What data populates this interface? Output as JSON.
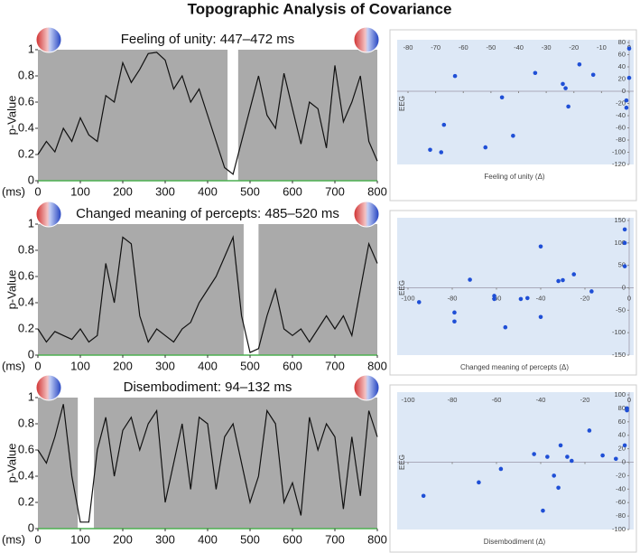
{
  "title": "Topographic Analysis of Covariance",
  "chart_data": [
    {
      "type": "line",
      "title": "Feeling of unity: 447–472 ms",
      "xlabel": "(ms)",
      "ylabel": "p-Value",
      "x": [
        0,
        20,
        40,
        60,
        80,
        100,
        120,
        140,
        160,
        180,
        200,
        220,
        240,
        260,
        280,
        300,
        320,
        340,
        360,
        380,
        400,
        420,
        440,
        460,
        480,
        500,
        520,
        540,
        560,
        580,
        600,
        620,
        640,
        660,
        680,
        700,
        720,
        740,
        760,
        780,
        800
      ],
      "series": [
        {
          "color": "#111111",
          "values": [
            0.2,
            0.3,
            0.22,
            0.4,
            0.3,
            0.48,
            0.35,
            0.3,
            0.65,
            0.6,
            0.9,
            0.75,
            0.85,
            0.97,
            0.98,
            0.92,
            0.7,
            0.8,
            0.6,
            0.7,
            0.5,
            0.3,
            0.1,
            0.05,
            0.3,
            0.55,
            0.8,
            0.5,
            0.4,
            0.82,
            0.55,
            0.28,
            0.6,
            0.55,
            0.25,
            0.88,
            0.45,
            0.6,
            0.8,
            0.3,
            0.15
          ]
        }
      ],
      "window": [
        447,
        472
      ],
      "background": "#aaaaaa",
      "axis_color": "#4caf50",
      "xlim": [
        0,
        800
      ],
      "xticks": [
        0,
        100,
        200,
        300,
        400,
        500,
        600,
        700,
        800
      ],
      "ylim": [
        0,
        1
      ],
      "yticks": [
        0,
        0.2,
        0.4,
        0.6,
        0.8,
        1
      ]
    },
    {
      "type": "line",
      "title": "Changed meaning of percepts: 485–520 ms",
      "xlabel": "(ms)",
      "ylabel": "p-Value",
      "x": [
        0,
        20,
        40,
        60,
        80,
        100,
        120,
        140,
        160,
        180,
        200,
        220,
        240,
        260,
        280,
        300,
        320,
        340,
        360,
        380,
        400,
        420,
        440,
        460,
        480,
        500,
        520,
        540,
        560,
        580,
        600,
        620,
        640,
        660,
        680,
        700,
        720,
        740,
        760,
        780,
        800
      ],
      "series": [
        {
          "color": "#111111",
          "values": [
            0.2,
            0.1,
            0.18,
            0.15,
            0.12,
            0.2,
            0.1,
            0.15,
            0.7,
            0.4,
            0.9,
            0.85,
            0.3,
            0.1,
            0.2,
            0.15,
            0.1,
            0.2,
            0.25,
            0.4,
            0.5,
            0.6,
            0.75,
            0.9,
            0.3,
            0.02,
            0.05,
            0.3,
            0.5,
            0.2,
            0.15,
            0.2,
            0.1,
            0.2,
            0.3,
            0.2,
            0.3,
            0.15,
            0.5,
            0.85,
            0.7
          ]
        }
      ],
      "window": [
        485,
        520
      ],
      "background": "#aaaaaa",
      "axis_color": "#4caf50",
      "xlim": [
        0,
        800
      ],
      "xticks": [
        0,
        100,
        200,
        300,
        400,
        500,
        600,
        700,
        800
      ],
      "ylim": [
        0,
        1
      ],
      "yticks": [
        0,
        0.2,
        0.4,
        0.6,
        0.8,
        1
      ]
    },
    {
      "type": "line",
      "title": "Disembodiment: 94–132 ms",
      "xlabel": "(ms)",
      "ylabel": "p-Value",
      "x": [
        0,
        20,
        40,
        60,
        80,
        100,
        120,
        140,
        160,
        180,
        200,
        220,
        240,
        260,
        280,
        300,
        320,
        340,
        360,
        380,
        400,
        420,
        440,
        460,
        480,
        500,
        520,
        540,
        560,
        580,
        600,
        620,
        640,
        660,
        680,
        700,
        720,
        740,
        760,
        780,
        800
      ],
      "series": [
        {
          "color": "#111111",
          "values": [
            0.6,
            0.5,
            0.7,
            0.95,
            0.4,
            0.05,
            0.05,
            0.6,
            0.85,
            0.4,
            0.75,
            0.85,
            0.6,
            0.8,
            0.9,
            0.2,
            0.5,
            0.8,
            0.3,
            0.85,
            0.8,
            0.3,
            0.7,
            0.8,
            0.5,
            0.2,
            0.4,
            0.9,
            0.8,
            0.2,
            0.35,
            0.1,
            0.85,
            0.6,
            0.8,
            0.7,
            0.15,
            0.7,
            0.25,
            0.9,
            0.7
          ]
        }
      ],
      "window": [
        94,
        132
      ],
      "background": "#aaaaaa",
      "axis_color": "#4caf50",
      "xlim": [
        0,
        800
      ],
      "xticks": [
        0,
        100,
        200,
        300,
        400,
        500,
        600,
        700,
        800
      ],
      "ylim": [
        0,
        1
      ],
      "yticks": [
        0,
        0.2,
        0.4,
        0.6,
        0.8,
        1
      ]
    },
    {
      "type": "scatter",
      "xlabel": "Feeling of unity (Δ)",
      "ylabel": "EEG",
      "background": "#dde8f6",
      "x": [
        -72,
        -68,
        -67,
        -63,
        -52,
        -46,
        -42,
        -34,
        -24,
        -23,
        -22,
        -18,
        -13,
        -1,
        -1,
        0,
        0
      ],
      "series": [
        {
          "color": "#1f4fd6",
          "values": [
            -96,
            -100,
            -55,
            25,
            -92,
            -10,
            -73,
            30,
            12,
            5,
            -25,
            44,
            27,
            -15,
            -27,
            70,
            22
          ]
        }
      ],
      "xlim": [
        -80,
        0
      ],
      "xticks": [
        -80,
        -70,
        -60,
        -50,
        -40,
        -30,
        -20,
        -10,
        0
      ],
      "ylim": [
        -120,
        80
      ],
      "yticks": [
        -120,
        -100,
        -80,
        -60,
        -40,
        -20,
        0,
        20,
        40,
        60,
        80
      ]
    },
    {
      "type": "scatter",
      "xlabel": "Changed meaning of percepts (Δ)",
      "ylabel": "EEG",
      "background": "#dde8f6",
      "x": [
        -95,
        -79,
        -79,
        -72,
        -61,
        -61,
        -56,
        -49,
        -46,
        -40,
        -40,
        -32,
        -30,
        -25,
        -17,
        -2,
        -2,
        -2
      ],
      "series": [
        {
          "color": "#1f4fd6",
          "values": [
            -32,
            -55,
            -75,
            18,
            -18,
            -25,
            -88,
            -25,
            -23,
            92,
            -65,
            15,
            17,
            30,
            -8,
            130,
            100,
            48
          ]
        }
      ],
      "xlim": [
        -100,
        0
      ],
      "xticks": [
        -100,
        -80,
        -60,
        -40,
        -20,
        0
      ],
      "ylim": [
        -150,
        150
      ],
      "yticks": [
        -150,
        -100,
        -50,
        0,
        50,
        100,
        150
      ]
    },
    {
      "type": "scatter",
      "xlabel": "Disembodiment (Δ)",
      "ylabel": "EEG",
      "background": "#dde8f6",
      "x": [
        -93,
        -68,
        -58,
        -43,
        -39,
        -37,
        -34,
        -32,
        -31,
        -28,
        -26,
        -18,
        -12,
        -6,
        -2,
        -1,
        -1
      ],
      "series": [
        {
          "color": "#1f4fd6",
          "values": [
            -50,
            -30,
            -10,
            12,
            -72,
            8,
            -20,
            -38,
            25,
            8,
            2,
            47,
            10,
            5,
            25,
            80,
            77
          ]
        }
      ],
      "xlim": [
        -100,
        0
      ],
      "xticks": [
        -100,
        -80,
        -60,
        -40,
        -20,
        0
      ],
      "ylim": [
        -100,
        100
      ],
      "yticks": [
        -100,
        -80,
        -60,
        -40,
        -20,
        0,
        20,
        40,
        60,
        80,
        100
      ]
    }
  ]
}
